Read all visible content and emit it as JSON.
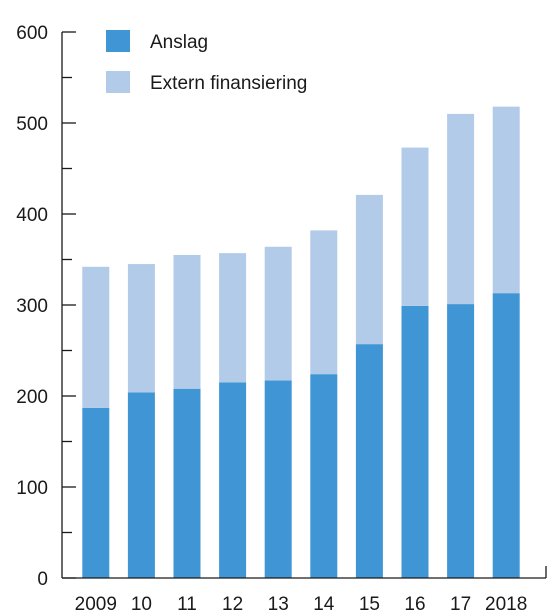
{
  "chart_data": {
    "type": "bar",
    "stacked": true,
    "categories": [
      "2009",
      "10",
      "11",
      "12",
      "13",
      "14",
      "15",
      "16",
      "17",
      "2018"
    ],
    "series": [
      {
        "name": "Anslag",
        "color": "#4096d4",
        "values": [
          187,
          204,
          208,
          215,
          217,
          224,
          257,
          299,
          301,
          313
        ]
      },
      {
        "name": "Extern finansiering",
        "color": "#b2cbe9",
        "values": [
          155,
          141,
          147,
          142,
          147,
          158,
          164,
          174,
          209,
          205
        ]
      }
    ],
    "ylim": [
      0,
      600
    ],
    "yticks": [
      0,
      100,
      200,
      300,
      400,
      500,
      600
    ],
    "minor_step": 50,
    "grid": false,
    "legend_position": "top-left",
    "title": "",
    "xlabel": "",
    "ylabel": ""
  }
}
